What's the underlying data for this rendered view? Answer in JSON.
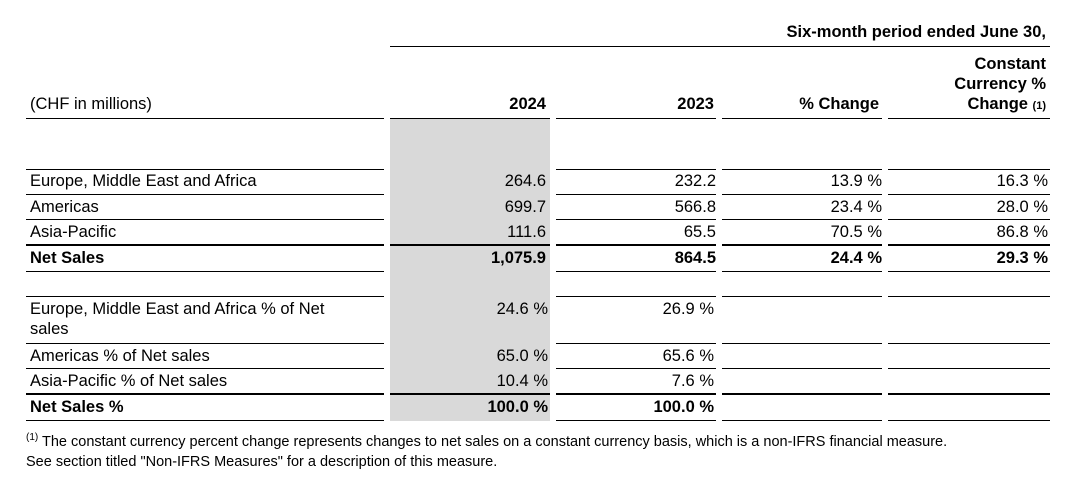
{
  "header": {
    "period": "Six-month period ended June 30,",
    "unit_label": "(CHF in millions)",
    "col_2024": "2024",
    "col_2023": "2023",
    "col_change": "% Change",
    "col_cc_line1": "Constant",
    "col_cc_line2": "Currency %",
    "col_cc_line3": "Change",
    "col_cc_note": "(1)"
  },
  "sales_rows": [
    {
      "label": "Europe, Middle East and Africa",
      "v2024": "264.6",
      "v2023": "232.2",
      "change": "13.9 %",
      "cc": "16.3 %"
    },
    {
      "label": "Americas",
      "v2024": "699.7",
      "v2023": "566.8",
      "change": "23.4 %",
      "cc": "28.0 %"
    },
    {
      "label": "Asia-Pacific",
      "v2024": "111.6",
      "v2023": "65.5",
      "change": "70.5 %",
      "cc": "86.8 %"
    }
  ],
  "sales_total": {
    "label": "Net Sales",
    "v2024": "1,075.9",
    "v2023": "864.5",
    "change": "24.4 %",
    "cc": "29.3 %"
  },
  "pct_rows": [
    {
      "label_line1": "Europe, Middle East and Africa % of Net",
      "label_line2": "sales",
      "v2024": "24.6 %",
      "v2023": "26.9 %"
    },
    {
      "label_line1": "Americas % of Net sales",
      "label_line2": "",
      "v2024": "65.0 %",
      "v2023": "65.6 %"
    },
    {
      "label_line1": "Asia-Pacific % of Net sales",
      "label_line2": "",
      "v2024": "10.4 %",
      "v2023": "7.6 %"
    }
  ],
  "pct_total": {
    "label": "Net Sales %",
    "v2024": "100.0 %",
    "v2023": "100.0 %"
  },
  "footnote": {
    "marker": "(1)",
    "line1": "The constant currency percent change represents changes to net sales on a constant currency basis, which is a non-IFRS financial measure.",
    "line2": "See section titled \"Non-IFRS Measures\" for a description of this measure."
  }
}
